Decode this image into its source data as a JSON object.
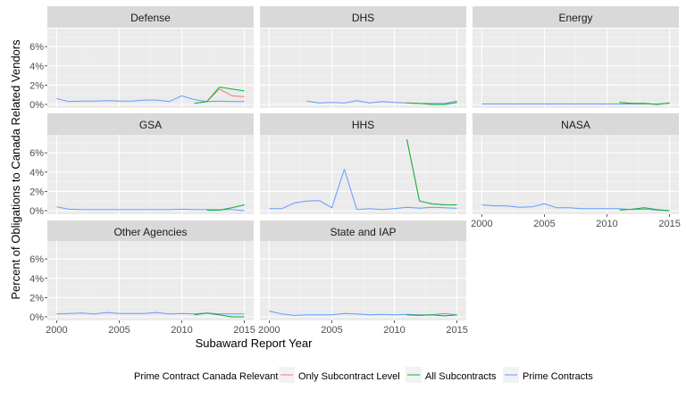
{
  "chart_data": {
    "type": "line",
    "xlabel": "Subaward Report Year",
    "ylabel": "Percent of Obligations to Canada Related Vendors",
    "xlim": [
      2000,
      2015
    ],
    "ylim": [
      0,
      7.5
    ],
    "x_ticks": [
      "2000",
      "2005",
      "2010",
      "2015"
    ],
    "y_ticks": [
      "0%",
      "2%",
      "4%",
      "6%"
    ],
    "x_tick_values": [
      2000,
      2005,
      2010,
      2015
    ],
    "y_tick_values": [
      0,
      2,
      4,
      6
    ],
    "grid": true,
    "legend": {
      "title": "Prime Contract Canada Relevant",
      "placement": "bottom",
      "entries": [
        {
          "label": "Only Subcontract Level",
          "color": "#F8766D"
        },
        {
          "label": "All Subcontracts",
          "color": "#00BA38"
        },
        {
          "label": "Prime Contracts",
          "color": "#619CFF"
        }
      ]
    },
    "panels": [
      {
        "name": "Defense",
        "series": [
          {
            "color": "#619CFF",
            "x": [
              2000,
              2001,
              2002,
              2003,
              2004,
              2005,
              2006,
              2007,
              2008,
              2009,
              2010,
              2011,
              2012,
              2013,
              2014,
              2015
            ],
            "y": [
              0.6,
              0.3,
              0.35,
              0.35,
              0.4,
              0.35,
              0.35,
              0.45,
              0.45,
              0.3,
              0.9,
              0.5,
              0.3,
              0.35,
              0.3,
              0.3
            ]
          },
          {
            "color": "#F8766D",
            "x": [
              2011,
              2012,
              2013,
              2014,
              2015
            ],
            "y": [
              0.1,
              0.3,
              1.6,
              0.9,
              0.8
            ]
          },
          {
            "color": "#00BA38",
            "x": [
              2011,
              2012,
              2013,
              2014,
              2015
            ],
            "y": [
              0.1,
              0.3,
              1.8,
              1.6,
              1.4
            ]
          }
        ]
      },
      {
        "name": "DHS",
        "series": [
          {
            "color": "#619CFF",
            "x": [
              2003,
              2004,
              2005,
              2006,
              2007,
              2008,
              2009,
              2010,
              2011,
              2012,
              2013,
              2014,
              2015
            ],
            "y": [
              0.35,
              0.15,
              0.2,
              0.15,
              0.4,
              0.15,
              0.3,
              0.2,
              0.15,
              0.1,
              0.1,
              0.1,
              0.35
            ]
          },
          {
            "color": "#F8766D",
            "x": [
              2011,
              2012,
              2013,
              2014,
              2015
            ],
            "y": [
              0.15,
              0.1,
              0.0,
              0.0,
              0.2
            ]
          },
          {
            "color": "#00BA38",
            "x": [
              2011,
              2012,
              2013,
              2014,
              2015
            ],
            "y": [
              0.15,
              0.1,
              0.0,
              0.0,
              0.2
            ]
          }
        ]
      },
      {
        "name": "Energy",
        "series": [
          {
            "color": "#619CFF",
            "x": [
              2000,
              2001,
              2002,
              2003,
              2004,
              2005,
              2006,
              2007,
              2008,
              2009,
              2010,
              2011,
              2012,
              2013,
              2014,
              2015
            ],
            "y": [
              0.05,
              0.05,
              0.05,
              0.05,
              0.05,
              0.05,
              0.05,
              0.05,
              0.05,
              0.05,
              0.05,
              0.05,
              0.05,
              0.05,
              0.05,
              0.1
            ]
          },
          {
            "color": "#F8766D",
            "x": [
              2011,
              2012,
              2013,
              2014,
              2015
            ],
            "y": [
              0.2,
              0.1,
              0.1,
              0.0,
              0.15
            ]
          },
          {
            "color": "#00BA38",
            "x": [
              2011,
              2012,
              2013,
              2014,
              2015
            ],
            "y": [
              0.2,
              0.1,
              0.1,
              0.0,
              0.15
            ]
          }
        ]
      },
      {
        "name": "GSA",
        "series": [
          {
            "color": "#619CFF",
            "x": [
              2000,
              2001,
              2002,
              2003,
              2004,
              2005,
              2006,
              2007,
              2008,
              2009,
              2010,
              2011,
              2012,
              2013,
              2014,
              2015
            ],
            "y": [
              0.4,
              0.15,
              0.1,
              0.1,
              0.1,
              0.1,
              0.1,
              0.1,
              0.1,
              0.1,
              0.15,
              0.1,
              0.1,
              0.1,
              0.1,
              0.0
            ]
          },
          {
            "color": "#F8766D",
            "x": [
              2012,
              2013,
              2014,
              2015
            ],
            "y": [
              0.05,
              0.05,
              0.3,
              0.6
            ]
          },
          {
            "color": "#00BA38",
            "x": [
              2012,
              2013,
              2014,
              2015
            ],
            "y": [
              0.05,
              0.05,
              0.3,
              0.6
            ]
          }
        ]
      },
      {
        "name": "HHS",
        "series": [
          {
            "color": "#619CFF",
            "x": [
              2000,
              2001,
              2002,
              2003,
              2004,
              2005,
              2006,
              2007,
              2008,
              2009,
              2010,
              2011,
              2012,
              2013,
              2014,
              2015
            ],
            "y": [
              0.2,
              0.2,
              0.8,
              1.0,
              1.05,
              0.3,
              4.3,
              0.1,
              0.2,
              0.1,
              0.2,
              0.35,
              0.25,
              0.35,
              0.3,
              0.25
            ]
          },
          {
            "color": "#F8766D",
            "x": [
              2011,
              2012,
              2013,
              2014,
              2015
            ],
            "y": [
              7.4,
              1.0,
              0.7,
              0.6,
              0.6
            ]
          },
          {
            "color": "#00BA38",
            "x": [
              2011,
              2012,
              2013,
              2014,
              2015
            ],
            "y": [
              7.4,
              1.0,
              0.7,
              0.6,
              0.6
            ]
          }
        ]
      },
      {
        "name": "NASA",
        "series": [
          {
            "color": "#619CFF",
            "x": [
              2000,
              2001,
              2002,
              2003,
              2004,
              2005,
              2006,
              2007,
              2008,
              2009,
              2010,
              2011,
              2012,
              2013,
              2014,
              2015
            ],
            "y": [
              0.6,
              0.5,
              0.5,
              0.35,
              0.4,
              0.7,
              0.3,
              0.3,
              0.2,
              0.2,
              0.2,
              0.2,
              0.1,
              0.15,
              0.05,
              0.0
            ]
          },
          {
            "color": "#F8766D",
            "x": [
              2011,
              2012,
              2013,
              2014,
              2015
            ],
            "y": [
              0.05,
              0.15,
              0.3,
              0.1,
              0.0
            ]
          },
          {
            "color": "#00BA38",
            "x": [
              2011,
              2012,
              2013,
              2014,
              2015
            ],
            "y": [
              0.05,
              0.15,
              0.3,
              0.1,
              0.0
            ]
          }
        ]
      },
      {
        "name": "Other Agencies",
        "series": [
          {
            "color": "#619CFF",
            "x": [
              2000,
              2001,
              2002,
              2003,
              2004,
              2005,
              2006,
              2007,
              2008,
              2009,
              2010,
              2011,
              2012,
              2013,
              2014,
              2015
            ],
            "y": [
              0.3,
              0.35,
              0.4,
              0.3,
              0.45,
              0.35,
              0.35,
              0.35,
              0.45,
              0.3,
              0.35,
              0.3,
              0.4,
              0.3,
              0.3,
              0.3
            ]
          },
          {
            "color": "#F8766D",
            "x": [
              2011,
              2012,
              2013,
              2014,
              2015
            ],
            "y": [
              0.2,
              0.4,
              0.2,
              0.0,
              0.0
            ]
          },
          {
            "color": "#00BA38",
            "x": [
              2011,
              2012,
              2013,
              2014,
              2015
            ],
            "y": [
              0.2,
              0.4,
              0.2,
              0.0,
              0.0
            ]
          }
        ]
      },
      {
        "name": "State and IAP",
        "series": [
          {
            "color": "#619CFF",
            "x": [
              2000,
              2001,
              2002,
              2003,
              2004,
              2005,
              2006,
              2007,
              2008,
              2009,
              2010,
              2011,
              2012,
              2013,
              2014,
              2015
            ],
            "y": [
              0.6,
              0.3,
              0.15,
              0.2,
              0.2,
              0.2,
              0.35,
              0.3,
              0.2,
              0.25,
              0.2,
              0.25,
              0.2,
              0.2,
              0.35,
              0.2
            ]
          },
          {
            "color": "#F8766D",
            "x": [
              2011,
              2012,
              2013,
              2014,
              2015
            ],
            "y": [
              0.2,
              0.15,
              0.2,
              0.1,
              0.2
            ]
          },
          {
            "color": "#00BA38",
            "x": [
              2011,
              2012,
              2013,
              2014,
              2015
            ],
            "y": [
              0.2,
              0.15,
              0.2,
              0.1,
              0.2
            ]
          }
        ]
      }
    ]
  },
  "colors": {
    "panel_background": "#EBEBEB",
    "strip_background": "#D9D9D9",
    "grid_major": "#FFFFFF",
    "grid_minor": "#F5F5F5"
  }
}
